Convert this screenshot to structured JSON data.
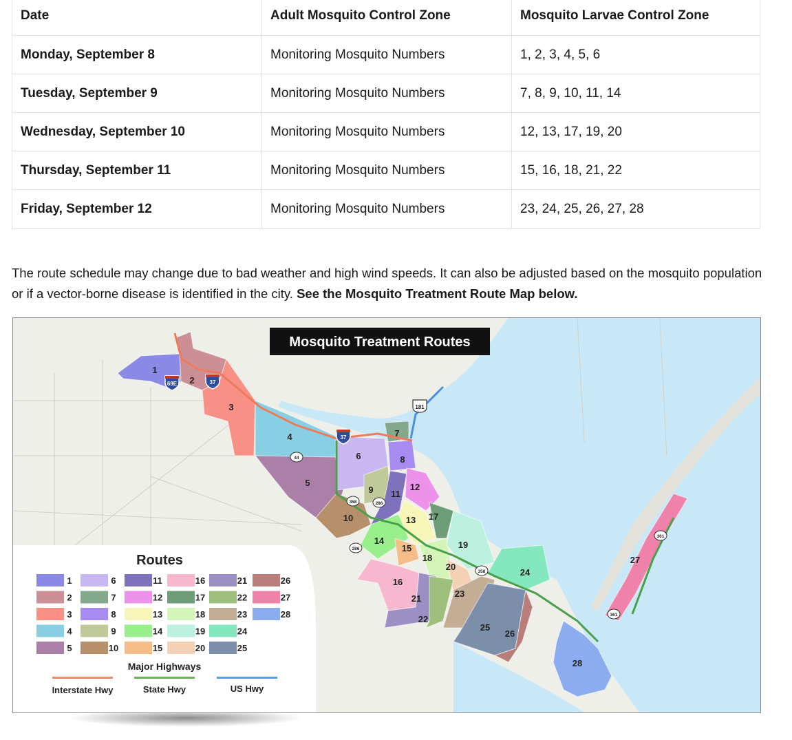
{
  "schedule": {
    "headers": [
      "Date",
      "Adult Mosquito Control Zone",
      "Mosquito Larvae Control Zone"
    ],
    "rows": [
      [
        "Monday, September 8",
        "Monitoring Mosquito Numbers",
        "1, 2, 3, 4, 5, 6"
      ],
      [
        "Tuesday, September 9",
        "Monitoring Mosquito Numbers",
        "7, 8, 9, 10, 11, 14"
      ],
      [
        "Wednesday, September 10",
        "Monitoring Mosquito Numbers",
        "12, 13, 17, 19, 20"
      ],
      [
        "Thursday, September 11",
        "Monitoring Mosquito Numbers",
        "15, 16, 18, 21, 22"
      ],
      [
        "Friday, September 12",
        "Monitoring Mosquito Numbers",
        "23, 24, 25, 26, 27, 28"
      ]
    ]
  },
  "notice": {
    "text": " The route schedule may change due to bad weather and high wind speeds. It can also be adjusted based on the mosquito population or if a vector-borne disease is identified in the city. ",
    "link_text": "See the Mosquito Treatment Route Map below."
  },
  "map": {
    "title": "Mosquito Treatment Routes",
    "shields": {
      "i69e": "69E",
      "i37a": "37",
      "i37b": "37",
      "us181": "181",
      "sh44": "44",
      "sh358a": "358",
      "sh286a": "286",
      "sh286b": "286",
      "sh358b": "358",
      "sh361a": "361",
      "sh361b": "361"
    },
    "zones": [
      {
        "label": "1",
        "color": "#8a8ae6"
      },
      {
        "label": "2",
        "color": "#cc8f96"
      },
      {
        "label": "3",
        "color": "#f99086"
      },
      {
        "label": "4",
        "color": "#89cfe3"
      },
      {
        "label": "5",
        "color": "#ab80a8"
      },
      {
        "label": "6",
        "color": "#c9b7f2"
      },
      {
        "label": "7",
        "color": "#84a88c"
      },
      {
        "label": "8",
        "color": "#a78bf0"
      },
      {
        "label": "9",
        "color": "#bfca98"
      },
      {
        "label": "10",
        "color": "#b5906a"
      },
      {
        "label": "11",
        "color": "#7e72bd"
      },
      {
        "label": "12",
        "color": "#ec92ea"
      },
      {
        "label": "13",
        "color": "#f7f6b8"
      },
      {
        "label": "14",
        "color": "#98ef8c"
      },
      {
        "label": "15",
        "color": "#f5be88"
      },
      {
        "label": "16",
        "color": "#f6b7cf"
      },
      {
        "label": "17",
        "color": "#6e9e78"
      },
      {
        "label": "18",
        "color": "#d3f6b8"
      },
      {
        "label": "19",
        "color": "#bdf1df"
      },
      {
        "label": "20",
        "color": "#f4d0b4"
      },
      {
        "label": "21",
        "color": "#9c8fc4"
      },
      {
        "label": "22",
        "color": "#9dc07c"
      },
      {
        "label": "23",
        "color": "#c3ad95"
      },
      {
        "label": "24",
        "color": "#85e7be"
      },
      {
        "label": "25",
        "color": "#7b8faa"
      },
      {
        "label": "26",
        "color": "#b97d7a"
      },
      {
        "label": "27",
        "color": "#ef82a8"
      },
      {
        "label": "28",
        "color": "#8bacee"
      }
    ],
    "legend": {
      "title": "Routes",
      "highways_title": "Major Highways",
      "hwy": [
        {
          "label": "Interstate Hwy",
          "color": "#f0866c"
        },
        {
          "label": "State Hwy",
          "color": "#6bb05c"
        },
        {
          "label": "US Hwy",
          "color": "#5a9be8"
        }
      ]
    }
  }
}
